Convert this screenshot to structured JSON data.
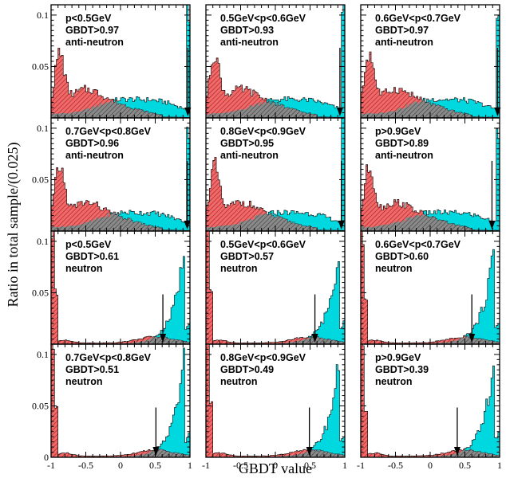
{
  "chart_data": {
    "type": "area",
    "xlabel": "GBDT value",
    "ylabel": "Ratio in total sample/(0.025)",
    "xlim": [
      -1,
      1
    ],
    "ylim": [
      0,
      0.11
    ],
    "x_ticks": [
      -1,
      -0.5,
      0,
      0.5,
      1
    ],
    "x_tick_labels": [
      "-1",
      "-0.5",
      "0",
      "0.5",
      "1"
    ],
    "y_ticks": [
      0,
      0.05,
      0.1
    ],
    "y_tick_labels": [
      "0",
      "0.05",
      "0.1"
    ],
    "bin_width": 0.025,
    "colors": {
      "signal": "#00d8e0",
      "background": "#e65555",
      "overlap": "#7a7a7a",
      "hatch": "#b02020"
    },
    "series_description": "cyan filled = signal sample, red hatched = background sample",
    "panels": [
      {
        "row": 0,
        "col": 0,
        "p_range": "p<0.5GeV",
        "cut_label": "GBDT>0.97",
        "particle": "anti-neutron",
        "cut": 0.97,
        "kind": "anti-neutron"
      },
      {
        "row": 0,
        "col": 1,
        "p_range": "0.5GeV<p<0.6GeV",
        "cut_label": "GBDT>0.93",
        "particle": "anti-neutron",
        "cut": 0.93,
        "kind": "anti-neutron"
      },
      {
        "row": 0,
        "col": 2,
        "p_range": "0.6GeV<p<0.7GeV",
        "cut_label": "GBDT>0.97",
        "particle": "anti-neutron",
        "cut": 0.97,
        "kind": "anti-neutron"
      },
      {
        "row": 1,
        "col": 0,
        "p_range": "0.7GeV<p<0.8GeV",
        "cut_label": "GBDT>0.96",
        "particle": "anti-neutron",
        "cut": 0.96,
        "kind": "anti-neutron"
      },
      {
        "row": 1,
        "col": 1,
        "p_range": "0.8GeV<p<0.9GeV",
        "cut_label": "GBDT>0.95",
        "particle": "anti-neutron",
        "cut": 0.95,
        "kind": "anti-neutron"
      },
      {
        "row": 1,
        "col": 2,
        "p_range": "p>0.9GeV",
        "cut_label": "GBDT>0.89",
        "particle": "anti-neutron",
        "cut": 0.89,
        "kind": "anti-neutron"
      },
      {
        "row": 2,
        "col": 0,
        "p_range": "p<0.5GeV",
        "cut_label": "GBDT>0.61",
        "particle": "neutron",
        "cut": 0.61,
        "kind": "neutron"
      },
      {
        "row": 2,
        "col": 1,
        "p_range": "0.5GeV<p<0.6GeV",
        "cut_label": "GBDT>0.57",
        "particle": "neutron",
        "cut": 0.57,
        "kind": "neutron"
      },
      {
        "row": 2,
        "col": 2,
        "p_range": "0.6GeV<p<0.7GeV",
        "cut_label": "GBDT>0.60",
        "particle": "neutron",
        "cut": 0.6,
        "kind": "neutron"
      },
      {
        "row": 3,
        "col": 0,
        "p_range": "0.7GeV<p<0.8GeV",
        "cut_label": "GBDT>0.51",
        "particle": "neutron",
        "cut": 0.51,
        "kind": "neutron"
      },
      {
        "row": 3,
        "col": 1,
        "p_range": "0.8GeV<p<0.9GeV",
        "cut_label": "GBDT>0.49",
        "particle": "neutron",
        "cut": 0.49,
        "kind": "neutron"
      },
      {
        "row": 3,
        "col": 2,
        "p_range": "p>0.9GeV",
        "cut_label": "GBDT>0.39",
        "particle": "neutron",
        "cut": 0.39,
        "kind": "neutron"
      }
    ]
  }
}
